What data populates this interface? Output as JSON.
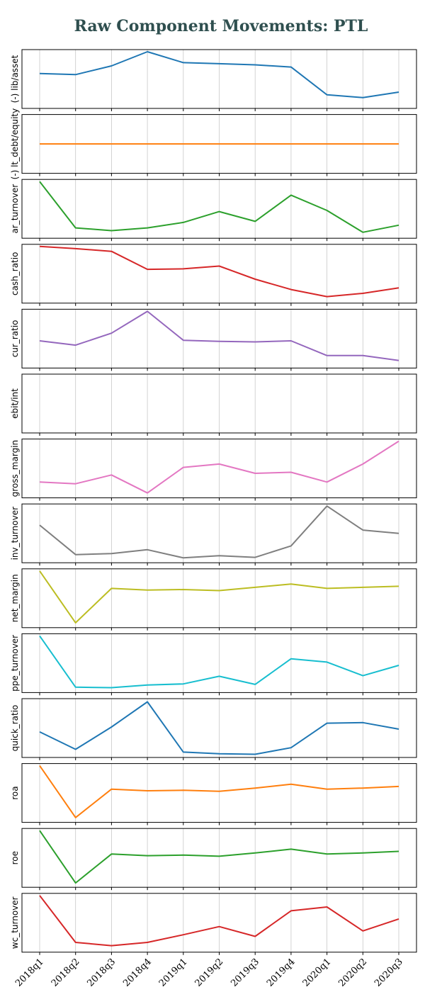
{
  "title": "Raw Component Movements: PTL",
  "chart_data": {
    "type": "line",
    "title": "Raw Component Movements: PTL",
    "categories": [
      "2018q1",
      "2018q2",
      "2018q3",
      "2018q4",
      "2019q1",
      "2019q2",
      "2019q3",
      "2019q4",
      "2020q1",
      "2020q2",
      "2020q3"
    ],
    "grid": "x-only",
    "y_ticks_shown": false,
    "series": [
      {
        "name": "(-) lib/asset",
        "color": "#1f77b4",
        "values": [
          0.6,
          0.58,
          0.74,
          1.0,
          0.8,
          0.78,
          0.76,
          0.72,
          0.21,
          0.16,
          0.26
        ]
      },
      {
        "name": "(-) lt_debt/equity",
        "color": "#ff7f0e",
        "values": [
          0.5,
          0.5,
          0.5,
          0.5,
          0.5,
          0.5,
          0.5,
          0.5,
          0.5,
          0.5,
          0.5
        ]
      },
      {
        "name": "ar_turnover",
        "color": "#2ca02c",
        "values": [
          1.0,
          0.15,
          0.1,
          0.15,
          0.25,
          0.45,
          0.27,
          0.75,
          0.47,
          0.07,
          0.2
        ]
      },
      {
        "name": "cash_ratio",
        "color": "#d62728",
        "values": [
          1.0,
          0.96,
          0.91,
          0.58,
          0.59,
          0.64,
          0.4,
          0.21,
          0.08,
          0.14,
          0.24
        ]
      },
      {
        "name": "cur_ratio",
        "color": "#9467bd",
        "values": [
          0.46,
          0.38,
          0.6,
          1.0,
          0.47,
          0.45,
          0.44,
          0.46,
          0.19,
          0.19,
          0.1
        ]
      },
      {
        "name": "ebit/int",
        "color": "#8c564b",
        "values": [
          null,
          null,
          null,
          null,
          null,
          null,
          null,
          null,
          null,
          null,
          null
        ]
      },
      {
        "name": "gross_margin",
        "color": "#e377c2",
        "values": [
          0.25,
          0.22,
          0.38,
          0.05,
          0.52,
          0.58,
          0.41,
          0.43,
          0.25,
          0.58,
          1.0
        ]
      },
      {
        "name": "inv_turnover",
        "color": "#7f7f7f",
        "values": [
          0.65,
          0.11,
          0.13,
          0.2,
          0.05,
          0.09,
          0.06,
          0.27,
          1.0,
          0.56,
          0.5
        ]
      },
      {
        "name": "net_margin",
        "color": "#bcbd22",
        "values": [
          1.0,
          0.05,
          0.68,
          0.65,
          0.66,
          0.64,
          0.7,
          0.76,
          0.68,
          0.7,
          0.72
        ]
      },
      {
        "name": "ppe_turnover",
        "color": "#17becf",
        "values": [
          1.0,
          0.06,
          0.05,
          0.1,
          0.12,
          0.26,
          0.11,
          0.58,
          0.52,
          0.27,
          0.46
        ]
      },
      {
        "name": "quick_ratio",
        "color": "#1f77b4",
        "values": [
          0.43,
          0.11,
          0.52,
          0.98,
          0.06,
          0.03,
          0.02,
          0.14,
          0.59,
          0.6,
          0.48
        ]
      },
      {
        "name": "roa",
        "color": "#ff7f0e",
        "values": [
          1.0,
          0.05,
          0.57,
          0.54,
          0.55,
          0.53,
          0.59,
          0.66,
          0.57,
          0.59,
          0.62
        ]
      },
      {
        "name": "roe",
        "color": "#2ca02c",
        "values": [
          1.0,
          0.04,
          0.57,
          0.54,
          0.55,
          0.53,
          0.59,
          0.66,
          0.57,
          0.59,
          0.62
        ]
      },
      {
        "name": "wc_turnover",
        "color": "#d62728",
        "values": [
          1.0,
          0.14,
          0.08,
          0.14,
          0.28,
          0.43,
          0.25,
          0.72,
          0.79,
          0.35,
          0.57
        ]
      }
    ]
  }
}
